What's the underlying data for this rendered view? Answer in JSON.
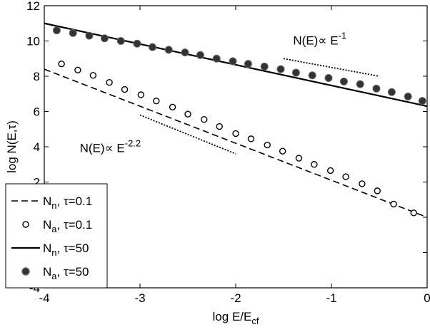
{
  "chart_data": {
    "type": "line",
    "xlabel": [
      "log E/E",
      "cf"
    ],
    "ylabel": "log N(E,τ)",
    "xlim": [
      -4,
      0
    ],
    "ylim": [
      -4,
      12
    ],
    "xticks": [
      -4,
      -3,
      -2,
      -1,
      0
    ],
    "yticks": [
      -4,
      -2,
      0,
      2,
      4,
      6,
      8,
      10,
      12
    ],
    "legend": "lower left",
    "series": [
      {
        "name": [
          "N",
          "n",
          ", τ=0.1"
        ],
        "style": "dashed",
        "color": "#000000",
        "x": [
          -4,
          0
        ],
        "values": [
          8.4,
          0.0
        ]
      },
      {
        "name": [
          "N",
          "a",
          ", τ=0.1"
        ],
        "style": "open-circle",
        "color": "#000000",
        "x": [
          -3.82,
          -3.65,
          -3.49,
          -3.32,
          -3.16,
          -2.99,
          -2.83,
          -2.66,
          -2.5,
          -2.33,
          -2.17,
          -2.0,
          -1.84,
          -1.67,
          -1.51,
          -1.34,
          -1.18,
          -1.01,
          -0.85,
          -0.68,
          -0.52,
          -0.35,
          -0.14
        ],
        "values": [
          8.7,
          8.35,
          8.05,
          7.65,
          7.25,
          6.95,
          6.6,
          6.25,
          5.85,
          5.55,
          5.15,
          4.75,
          4.45,
          4.1,
          3.75,
          3.35,
          3.0,
          2.65,
          2.3,
          1.9,
          1.5,
          0.75,
          0.25
        ]
      },
      {
        "name": [
          "N",
          "n",
          ", τ=50"
        ],
        "style": "solid",
        "color": "#000000",
        "x": [
          -4,
          0
        ],
        "values": [
          11.0,
          6.3
        ]
      },
      {
        "name": [
          "N",
          "a",
          ", τ=50"
        ],
        "style": "filled-circle",
        "color": "#333333",
        "x": [
          -3.87,
          -3.7,
          -3.53,
          -3.37,
          -3.2,
          -3.03,
          -2.87,
          -2.7,
          -2.53,
          -2.37,
          -2.2,
          -2.03,
          -1.87,
          -1.7,
          -1.53,
          -1.37,
          -1.2,
          -1.03,
          -0.87,
          -0.7,
          -0.53,
          -0.37,
          -0.2,
          -0.05
        ],
        "values": [
          10.6,
          10.45,
          10.3,
          10.15,
          10.0,
          9.85,
          9.65,
          9.5,
          9.35,
          9.2,
          9.0,
          8.85,
          8.7,
          8.55,
          8.4,
          8.2,
          8.05,
          7.9,
          7.7,
          7.55,
          7.3,
          7.1,
          6.85,
          6.6
        ]
      }
    ],
    "reference_lines": [
      {
        "x": [
          -1.5,
          -0.5
        ],
        "values": [
          9.0,
          8.0
        ]
      },
      {
        "x": [
          -3.0,
          -2.0
        ],
        "values": [
          5.8,
          3.6
        ]
      }
    ],
    "annotations": [
      {
        "text": "N(E)∝ E",
        "superscript": "-1",
        "x": -1.4,
        "y": 9.8
      },
      {
        "text": "N(E)∝ E",
        "superscript": "-2.2",
        "x": -3.63,
        "y": 3.7
      }
    ]
  }
}
